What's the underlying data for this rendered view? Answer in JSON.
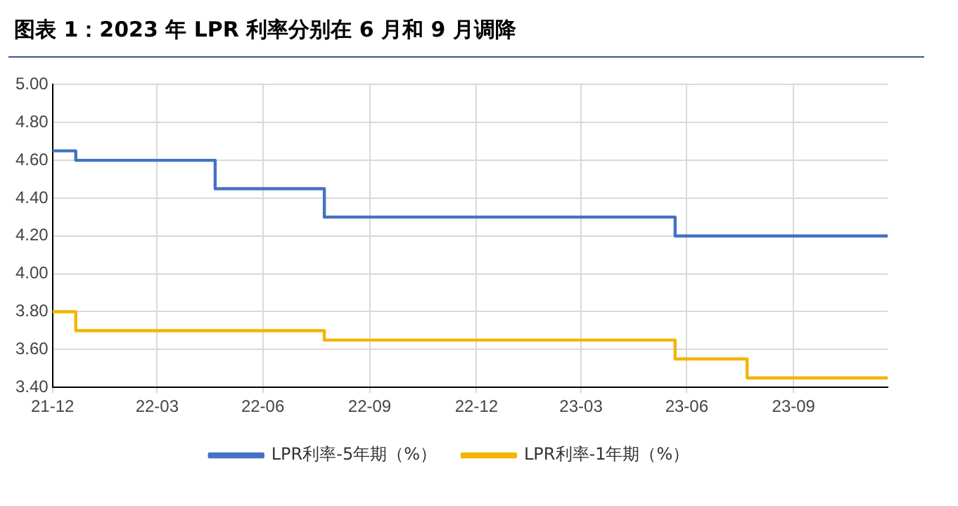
{
  "chart_data": {
    "type": "step",
    "title": "图表 1：2023 年 LPR 利率分别在 6 月和 9 月调降",
    "series": [
      {
        "name": "LPR利率-5年期（%）",
        "color": "#4472c4",
        "x": [
          "2021-12-31",
          "2022-01-20",
          "2022-05-20",
          "2022-08-22",
          "2023-06-20",
          "2023-12-20"
        ],
        "values": [
          4.65,
          4.6,
          4.45,
          4.3,
          4.2,
          4.2
        ]
      },
      {
        "name": "LPR利率-1年期（%）",
        "color": "#f4b400",
        "x": [
          "2021-12-31",
          "2022-01-20",
          "2022-08-22",
          "2023-06-20",
          "2023-08-21",
          "2023-12-20"
        ],
        "values": [
          3.8,
          3.7,
          3.65,
          3.55,
          3.45,
          3.45
        ]
      }
    ],
    "xlim": [
      "2021-12-31",
      "2023-12-20"
    ],
    "xticks": [
      {
        "value": "2021-12-31",
        "label": "21-12"
      },
      {
        "value": "2022-03-31",
        "label": "22-03"
      },
      {
        "value": "2022-06-30",
        "label": "22-06"
      },
      {
        "value": "2022-09-30",
        "label": "22-09"
      },
      {
        "value": "2022-12-31",
        "label": "22-12"
      },
      {
        "value": "2023-03-31",
        "label": "23-03"
      },
      {
        "value": "2023-06-30",
        "label": "23-06"
      },
      {
        "value": "2023-09-30",
        "label": "23-09"
      }
    ],
    "ylim": [
      3.4,
      5.0
    ],
    "yticks": [
      {
        "value": 3.4,
        "label": "3.40"
      },
      {
        "value": 3.6,
        "label": "3.60"
      },
      {
        "value": 3.8,
        "label": "3.80"
      },
      {
        "value": 4.0,
        "label": "4.00"
      },
      {
        "value": 4.2,
        "label": "4.20"
      },
      {
        "value": 4.4,
        "label": "4.40"
      },
      {
        "value": 4.6,
        "label": "4.60"
      },
      {
        "value": 4.8,
        "label": "4.80"
      },
      {
        "value": 5.0,
        "label": "5.00"
      }
    ],
    "grid": true,
    "legend": "bottom"
  }
}
